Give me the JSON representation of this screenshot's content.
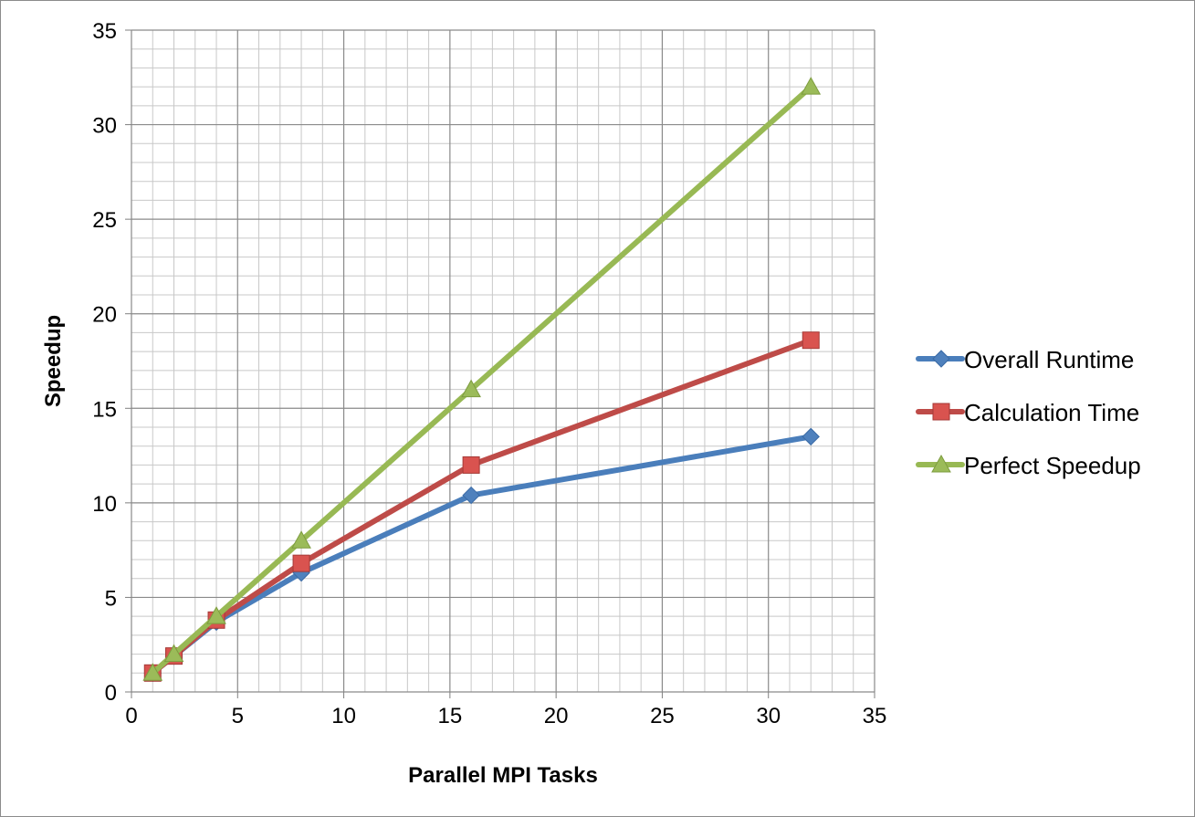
{
  "chart_data": {
    "type": "line",
    "xlabel": "Parallel MPI Tasks",
    "ylabel": "Speedup",
    "xlim": [
      0,
      35
    ],
    "ylim": [
      0,
      35
    ],
    "x_major_step": 5,
    "y_major_step": 5,
    "x_minor_step": 1,
    "y_minor_step": 1,
    "x_ticks": [
      "0",
      "5",
      "10",
      "15",
      "20",
      "25",
      "30",
      "35"
    ],
    "y_ticks": [
      "0",
      "5",
      "10",
      "15",
      "20",
      "25",
      "30",
      "35"
    ],
    "grid": true,
    "legend_position": "right",
    "series": [
      {
        "name": "Overall Runtime",
        "color": "#4a7ebb",
        "marker_color": "#4f81bd",
        "marker": "diamond",
        "x": [
          1,
          2,
          4,
          8,
          16,
          32
        ],
        "y": [
          1,
          1.9,
          3.7,
          6.3,
          10.4,
          13.5
        ]
      },
      {
        "name": "Calculation Time",
        "color": "#be4b48",
        "marker_color": "#d9534f",
        "marker": "square",
        "x": [
          1,
          2,
          4,
          8,
          16,
          32
        ],
        "y": [
          1,
          1.9,
          3.8,
          6.8,
          12,
          18.6
        ]
      },
      {
        "name": "Perfect Speedup",
        "color": "#98b954",
        "marker_color": "#9bbb59",
        "marker": "triangle",
        "x": [
          1,
          2,
          4,
          8,
          16,
          32
        ],
        "y": [
          1,
          2,
          4,
          8,
          16,
          32
        ]
      }
    ]
  }
}
